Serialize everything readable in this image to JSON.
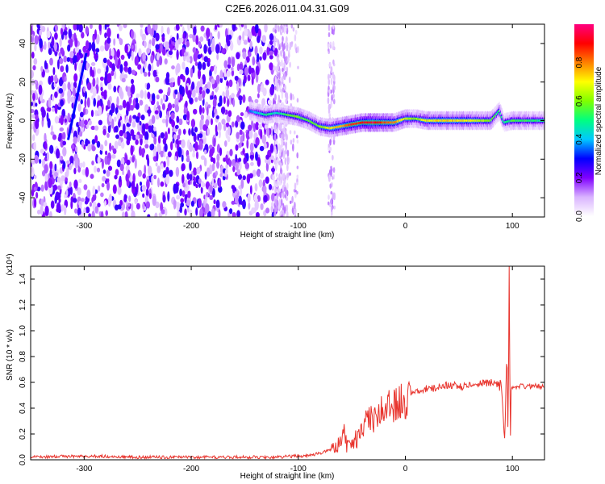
{
  "figure_title": "C2E6.2026.011.04.31.G09",
  "chart_data": [
    {
      "type": "heatmap",
      "title": "",
      "xlabel": "Height of straight line (km)",
      "ylabel": "Frequency (Hz)",
      "xlim": [
        -350,
        130
      ],
      "ylim": [
        -50,
        50
      ],
      "xticks": [
        -300,
        -200,
        -100,
        0,
        100
      ],
      "yticks": [
        -40,
        -20,
        0,
        20,
        40
      ],
      "colorbar": {
        "label": "Normalized spectral amplitude",
        "range": [
          0.0,
          1.0
        ],
        "ticks": [
          "0.0",
          "0.2",
          "0.4",
          "0.6",
          "0.8"
        ],
        "colors": [
          "#ffffff",
          "#d9b3ff",
          "#8000ff",
          "#0000ff",
          "#00c8ff",
          "#00ff80",
          "#80ff00",
          "#ffff00",
          "#ff8000",
          "#ff0000",
          "#ff0080"
        ]
      },
      "ridge": {
        "x": [
          -145,
          -130,
          -120,
          -110,
          -100,
          -90,
          -80,
          -70,
          -60,
          -50,
          -40,
          -30,
          -20,
          -10,
          0,
          10,
          20,
          40,
          60,
          80,
          88,
          92,
          100,
          130
        ],
        "y": [
          5,
          3,
          4,
          3,
          2,
          0,
          -3,
          -4,
          -3,
          -2,
          -1,
          -1,
          -1,
          -1,
          1,
          1,
          0,
          0,
          0,
          0,
          5,
          -1,
          0,
          0
        ],
        "amplitude": [
          0.35,
          0.5,
          0.45,
          0.55,
          0.6,
          0.55,
          0.6,
          0.7,
          0.75,
          0.85,
          0.9,
          0.95,
          0.85,
          0.8,
          0.65,
          0.6,
          0.7,
          0.75,
          0.7,
          0.6,
          0.5,
          0.45,
          0.55,
          0.5
        ]
      },
      "streak": {
        "x": [
          -315,
          -298
        ],
        "y": [
          -10,
          35
        ]
      }
    },
    {
      "type": "line",
      "title": "",
      "xlabel": "Height of straight line (km)",
      "ylabel": "SNR (10 * v/v)",
      "y_scale_label": "(x10⁴)",
      "xlim": [
        -350,
        130
      ],
      "ylim": [
        0.0,
        1.5
      ],
      "xticks": [
        -300,
        -200,
        -100,
        0,
        100
      ],
      "yticks": [
        "0.0",
        "0.2",
        "0.4",
        "0.6",
        "0.8",
        "1.0",
        "1.2",
        "1.4"
      ],
      "color": "#e8332c",
      "series": [
        {
          "x": [
            -350,
            -300,
            -250,
            -200,
            -150,
            -120,
            -100,
            -90,
            -80,
            -70,
            -65,
            -60,
            -57,
            -55,
            -50,
            -45,
            -40,
            -35,
            -30,
            -25,
            -20,
            -15,
            -10,
            -5,
            0,
            5,
            10,
            20,
            30,
            40,
            50,
            60,
            70,
            80,
            88,
            90,
            93,
            95,
            96,
            97,
            98,
            99,
            100,
            103,
            110,
            120,
            130
          ],
          "y": [
            0.02,
            0.03,
            0.02,
            0.02,
            0.02,
            0.02,
            0.03,
            0.03,
            0.05,
            0.08,
            0.1,
            0.14,
            0.25,
            0.12,
            0.1,
            0.18,
            0.25,
            0.33,
            0.3,
            0.38,
            0.36,
            0.42,
            0.43,
            0.45,
            0.48,
            0.5,
            0.52,
            0.55,
            0.56,
            0.58,
            0.57,
            0.57,
            0.59,
            0.6,
            0.58,
            0.55,
            0.15,
            0.9,
            0.1,
            1.5,
            0.1,
            0.6,
            0.55,
            0.57,
            0.57,
            0.57,
            0.57
          ]
        }
      ]
    }
  ]
}
